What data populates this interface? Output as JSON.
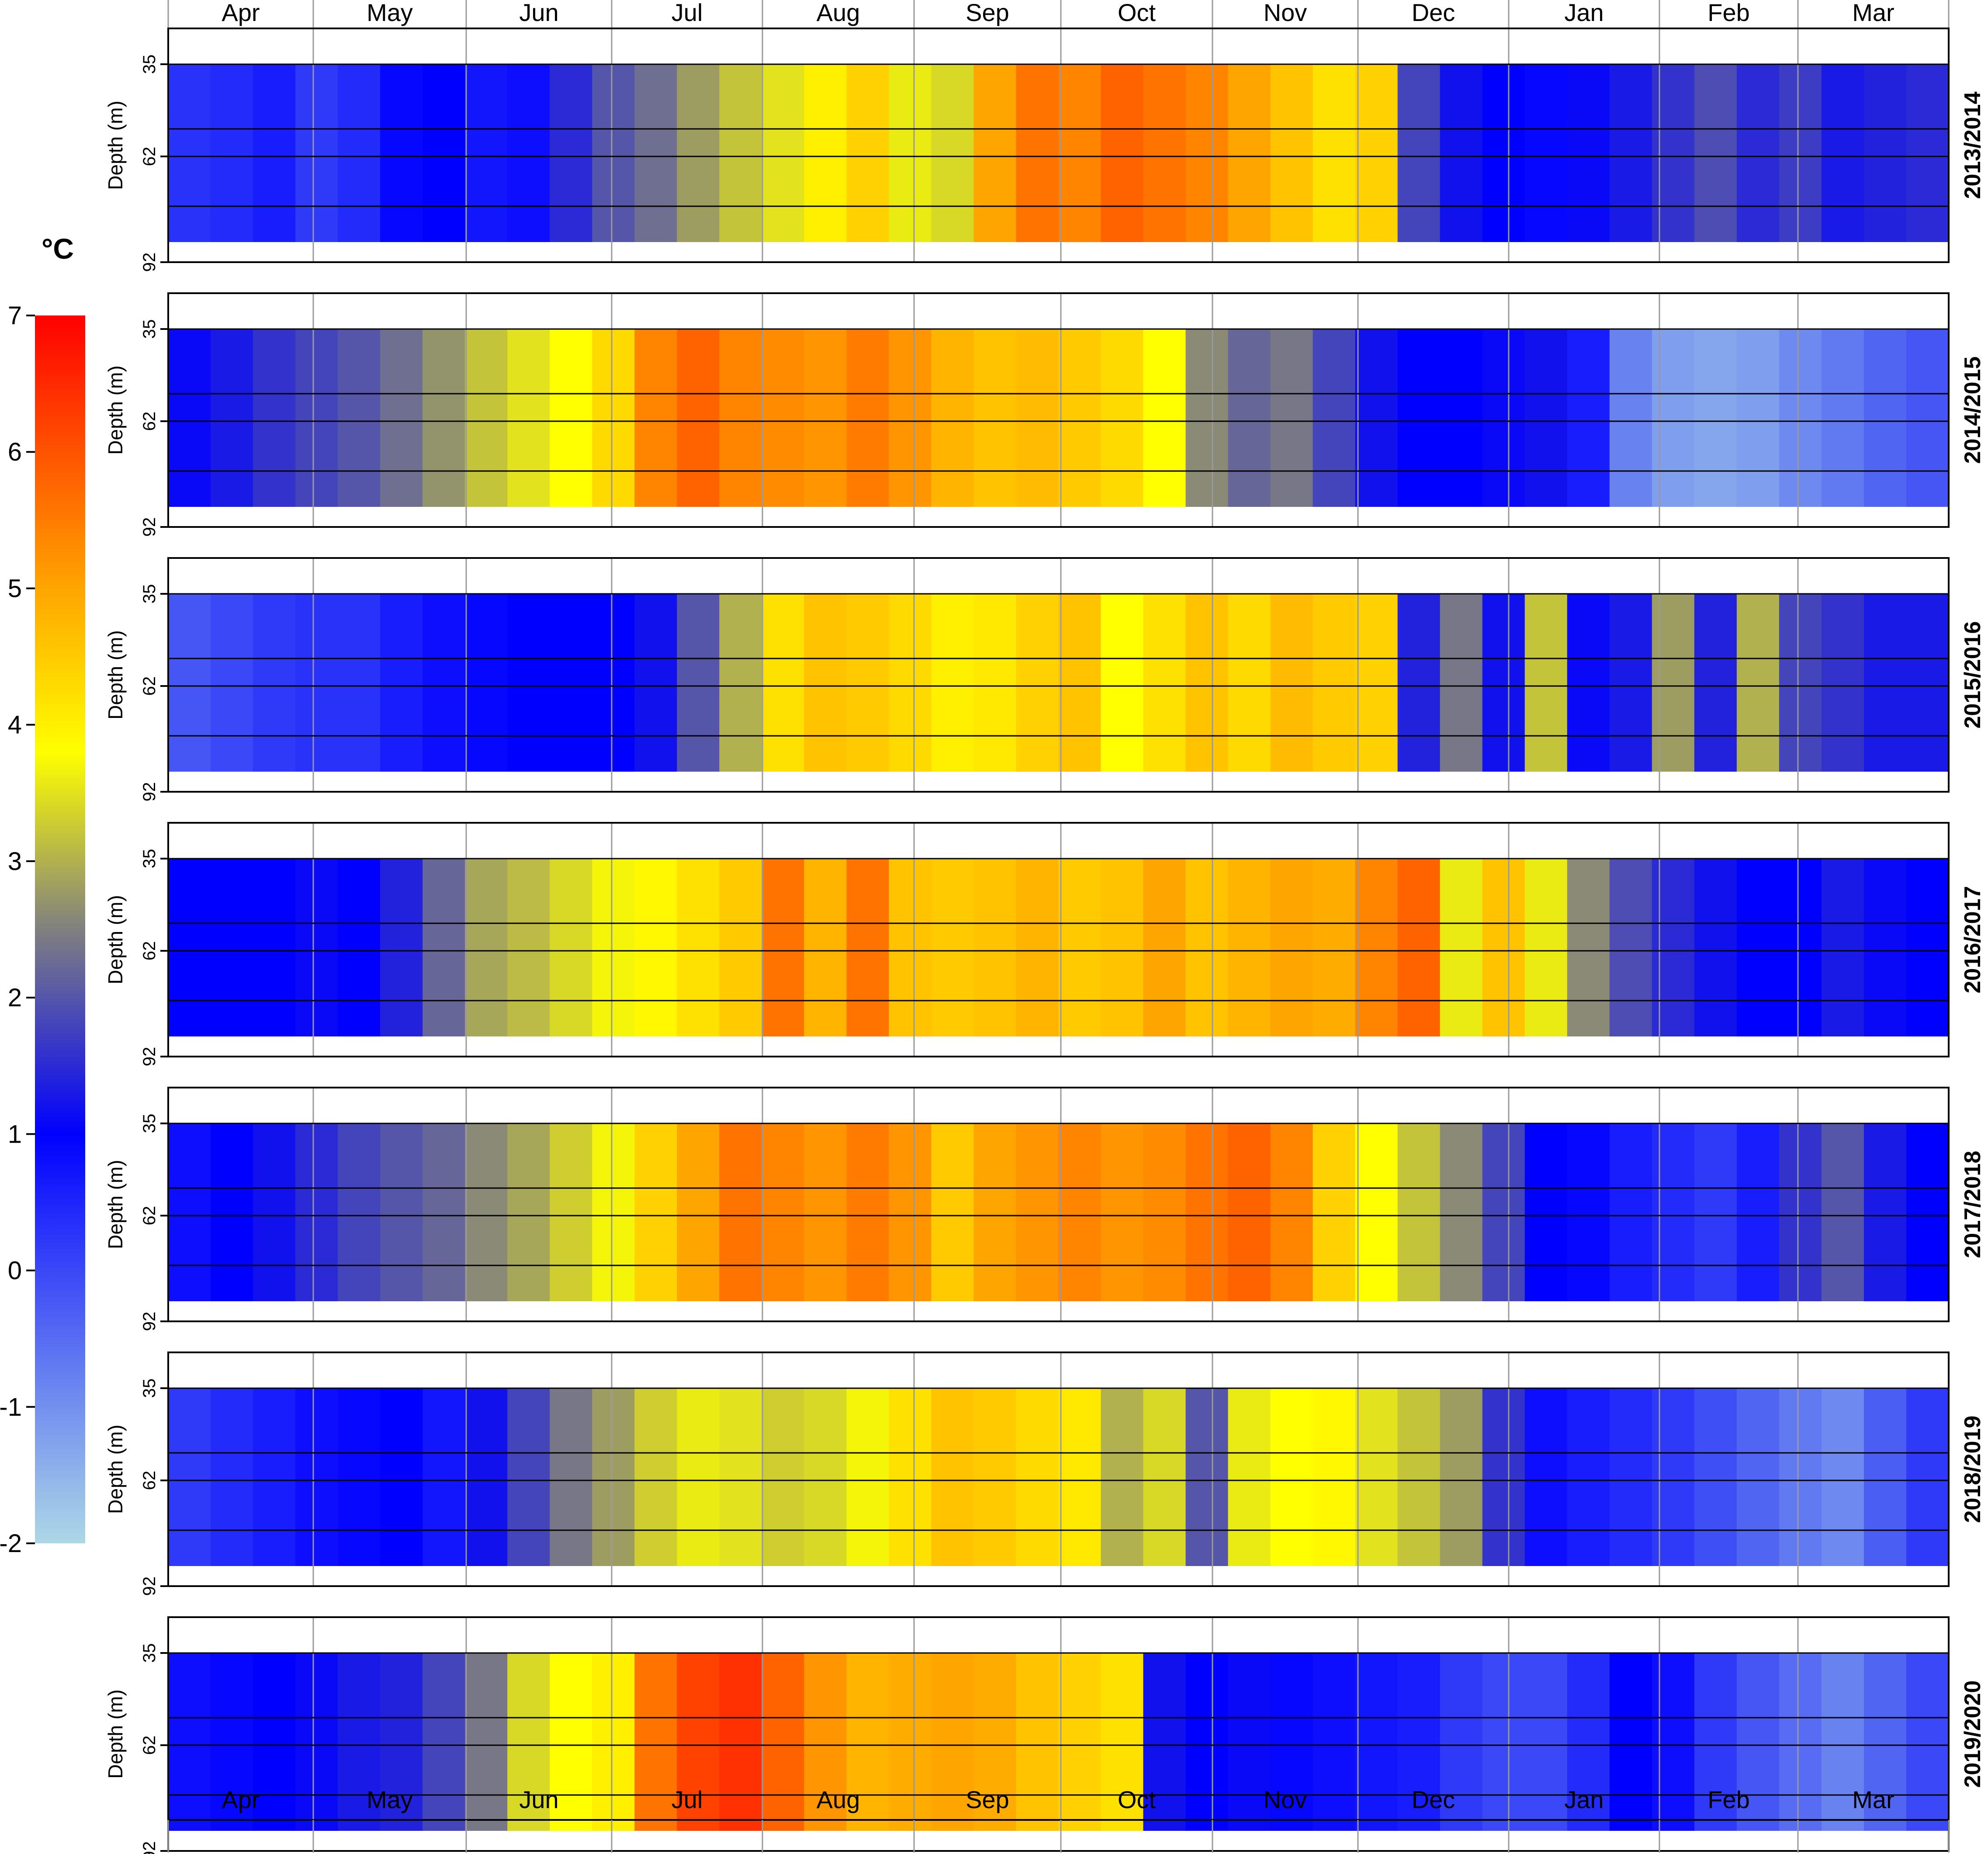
{
  "chart_data": {
    "type": "heatmap",
    "colorbar": {
      "title": "°C",
      "ticks": [
        "7",
        "6",
        "5",
        "4",
        "3",
        "2",
        "1",
        "0",
        "-1",
        "-2"
      ],
      "range": [
        -2,
        7
      ],
      "colors": [
        "#add8e6",
        "#0000ff",
        "#808080",
        "#ffff00",
        "#ffa500",
        "#ff0000"
      ],
      "stops": [
        -2,
        1,
        2.5,
        3.8,
        5,
        7
      ]
    },
    "months": [
      "Apr",
      "May",
      "Jun",
      "Jul",
      "Aug",
      "Sep",
      "Oct",
      "Nov",
      "Dec",
      "Jan",
      "Feb",
      "Mar"
    ],
    "ylabel": "Depth (m)",
    "yticks": [
      "35",
      "62",
      "92"
    ],
    "panels": [
      {
        "year": "2013/2014",
        "temps": [
          0.3,
          0.4,
          0.6,
          0.2,
          0.4,
          0.9,
          1.0,
          0.7,
          0.8,
          1.5,
          2.0,
          2.3,
          2.8,
          3.2,
          3.5,
          4.0,
          4.4,
          3.6,
          3.4,
          5.0,
          5.6,
          5.4,
          5.8,
          5.6,
          5.4,
          5.0,
          4.6,
          4.2,
          4.4,
          1.8,
          1.2,
          1.0,
          0.9,
          1.1,
          1.3,
          1.6,
          1.9,
          1.5,
          1.7,
          1.3,
          1.4,
          1.5
        ]
      },
      {
        "year": "2014/2015",
        "temps": [
          1.1,
          1.3,
          1.6,
          1.8,
          2.0,
          2.3,
          2.7,
          3.2,
          3.5,
          3.8,
          4.3,
          5.4,
          5.8,
          5.4,
          5.3,
          5.2,
          5.5,
          5.2,
          4.8,
          4.6,
          4.7,
          4.5,
          4.3,
          3.8,
          2.6,
          2.2,
          2.4,
          1.8,
          1.2,
          1.0,
          1.0,
          1.1,
          1.2,
          0.6,
          -0.8,
          -1.2,
          -1.3,
          -1.2,
          -0.9,
          -0.7,
          -0.4,
          -0.2
        ]
      },
      {
        "year": "2015/2016",
        "temps": [
          -0.2,
          0.0,
          0.2,
          0.3,
          0.3,
          0.6,
          0.8,
          0.9,
          1.0,
          1.0,
          1.0,
          1.2,
          2.0,
          3.0,
          4.2,
          4.6,
          4.5,
          4.3,
          4.0,
          4.1,
          4.4,
          4.6,
          3.8,
          4.2,
          4.6,
          4.3,
          4.7,
          4.5,
          4.4,
          1.4,
          2.4,
          1.2,
          3.2,
          1.1,
          1.3,
          2.8,
          1.4,
          3.0,
          1.8,
          1.6,
          1.3,
          1.3
        ]
      },
      {
        "year": "2016/2017",
        "temps": [
          1.0,
          1.0,
          1.0,
          1.1,
          1.0,
          1.4,
          2.2,
          2.9,
          3.1,
          3.4,
          3.7,
          3.9,
          4.2,
          4.5,
          5.6,
          4.8,
          5.6,
          4.6,
          4.5,
          4.6,
          4.8,
          4.5,
          4.6,
          5.0,
          4.6,
          4.8,
          5.0,
          4.9,
          5.4,
          5.8,
          3.6,
          4.6,
          3.6,
          2.6,
          1.9,
          1.5,
          1.2,
          1.0,
          1.0,
          1.3,
          1.1,
          1.0
        ]
      },
      {
        "year": "2017/2018",
        "temps": [
          0.8,
          1.0,
          1.2,
          1.5,
          1.8,
          2.0,
          2.2,
          2.6,
          2.9,
          3.3,
          3.7,
          4.4,
          5.0,
          5.6,
          5.4,
          5.2,
          5.5,
          5.2,
          4.5,
          5.0,
          5.2,
          5.4,
          5.2,
          5.3,
          5.6,
          5.8,
          5.4,
          4.4,
          3.8,
          3.2,
          2.6,
          1.8,
          1.0,
          0.9,
          0.6,
          0.4,
          0.2,
          0.6,
          1.6,
          2.0,
          1.3,
          1.0
        ]
      },
      {
        "year": "2018/2019",
        "temps": [
          0.2,
          0.4,
          0.6,
          0.8,
          0.9,
          1.0,
          0.7,
          1.2,
          1.8,
          2.4,
          2.8,
          3.3,
          3.6,
          3.5,
          3.3,
          3.4,
          3.7,
          4.2,
          4.6,
          4.5,
          4.3,
          4.1,
          3.0,
          3.4,
          2.0,
          3.6,
          3.8,
          3.9,
          3.5,
          3.2,
          2.8,
          1.6,
          0.8,
          0.6,
          0.4,
          0.2,
          -0.1,
          -0.4,
          -0.7,
          -0.9,
          -0.3,
          0.2
        ]
      },
      {
        "year": "2019/2020",
        "temps": [
          0.8,
          0.9,
          1.0,
          1.1,
          1.3,
          1.4,
          1.8,
          2.4,
          3.4,
          3.8,
          4.0,
          5.6,
          6.2,
          6.4,
          5.8,
          5.2,
          4.8,
          4.9,
          5.0,
          4.9,
          4.6,
          4.4,
          4.2,
          1.2,
          1.0,
          1.1,
          0.9,
          0.8,
          0.7,
          0.6,
          0.2,
          0.0,
          0.0,
          0.4,
          1.0,
          0.8,
          0.2,
          -0.2,
          -0.5,
          -0.8,
          -0.4,
          0.0
        ]
      }
    ]
  }
}
